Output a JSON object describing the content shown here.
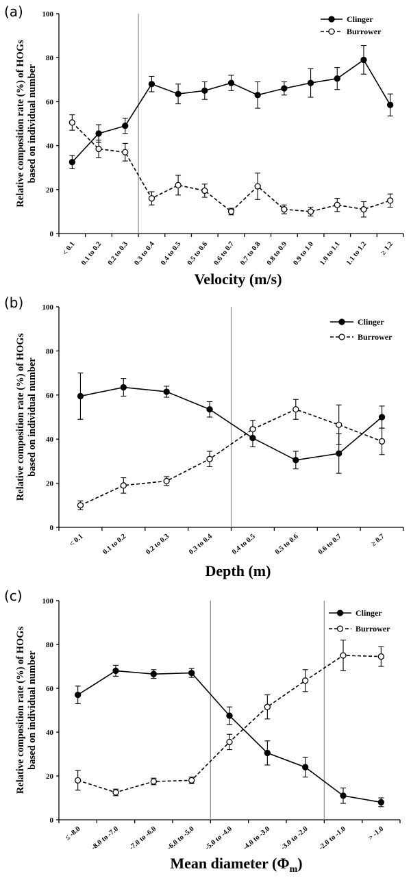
{
  "chart_data": [
    {
      "type": "line",
      "panel_label": "(a)",
      "title": "",
      "xlabel": "Velocity (m/s)",
      "ylabel": [
        "Relative composition rate (%) of HOGs",
        "based on individual number"
      ],
      "ylim": [
        0,
        100
      ],
      "yticks": [
        "0",
        "20",
        "40",
        "60",
        "80",
        "100"
      ],
      "categories": [
        "< 0.1",
        "0.1 to 0.2",
        "0.2 to 0.3",
        "0.3 to 0.4",
        "0.4 to 0.5",
        "0.5 to 0.6",
        "0.6 to 0.7",
        "0.7 to 0.8",
        "0.8 to 0.9",
        "0.9 to 1.0",
        "1.0 to 1.1",
        "1.1 to 1.2",
        "≥ 1.2"
      ],
      "dividers_after_index": [
        2
      ],
      "legend_position": "top-right",
      "grid": false,
      "series": [
        {
          "name": "Clinger",
          "style": "solid",
          "marker": "filled",
          "values": [
            32.5,
            45.5,
            49,
            68,
            63.5,
            65,
            68.5,
            63,
            66,
            68.5,
            70.5,
            79,
            58.5
          ],
          "errors": [
            3,
            4,
            3.5,
            3.5,
            4.5,
            4,
            3.5,
            6,
            3,
            6.5,
            5,
            6.5,
            5
          ]
        },
        {
          "name": "Burrower",
          "style": "dashed",
          "marker": "open",
          "values": [
            50.5,
            38.5,
            37,
            16,
            22,
            19.5,
            10,
            21.5,
            11,
            10,
            13,
            11,
            15
          ],
          "errors": [
            3.5,
            4,
            4,
            3,
            4.5,
            3,
            1.5,
            6,
            2,
            2,
            3,
            3.5,
            3
          ]
        }
      ]
    },
    {
      "type": "line",
      "panel_label": "(b)",
      "title": "",
      "xlabel": "Depth (m)",
      "ylabel": [
        "Relative composition rate (%) of HOGs",
        "based on individual number"
      ],
      "ylim": [
        0,
        100
      ],
      "yticks": [
        "0",
        "20",
        "40",
        "60",
        "80",
        "100"
      ],
      "categories": [
        "< 0.1",
        "0.1 to 0.2",
        "0.2 to 0.3",
        "0.3 to 0.4",
        "0.4 to 0.5",
        "0.5 to 0.6",
        "0.6 to 0.7",
        "≥ 0.7"
      ],
      "dividers_after_index": [
        3
      ],
      "legend_position": "top-right",
      "grid": false,
      "series": [
        {
          "name": "Clinger",
          "style": "solid",
          "marker": "filled",
          "values": [
            59.5,
            63.5,
            61.5,
            53.5,
            40.5,
            30.5,
            33.5,
            50
          ],
          "errors": [
            10.5,
            4,
            2.5,
            3.5,
            4,
            4,
            9,
            5
          ]
        },
        {
          "name": "Burrower",
          "style": "dashed",
          "marker": "open",
          "values": [
            10,
            19,
            21,
            31,
            44.5,
            53.5,
            46.5,
            39
          ],
          "errors": [
            2,
            3.5,
            2,
            3.5,
            4,
            4.5,
            9,
            6
          ]
        }
      ]
    },
    {
      "type": "line",
      "panel_label": "(c)",
      "title": "",
      "xlabel": "Mean diameter (Φ",
      "xlabel_sub": "m",
      "xlabel_end": ")",
      "ylabel": [
        "Relative composition rate (%) of HOGs",
        "based on individual number"
      ],
      "ylim": [
        0,
        100
      ],
      "yticks": [
        "0",
        "20",
        "40",
        "60",
        "80",
        "100"
      ],
      "categories": [
        "≤ -8.0",
        "-8.0 to -7.0",
        "-7.0 to -6.0",
        "-6.0 to -5.0",
        "-5.0 to -4.0",
        "-4.0 to -3.0",
        "-3.0 to -2.0",
        "-2.0 to -1.0",
        "> -1.0"
      ],
      "dividers_after_index": [
        3,
        6
      ],
      "legend_position": "top-right",
      "grid": false,
      "series": [
        {
          "name": "Clinger",
          "style": "solid",
          "marker": "filled",
          "values": [
            57,
            68,
            66.5,
            67,
            47.5,
            30.5,
            24,
            11,
            8
          ],
          "errors": [
            4,
            2.5,
            2,
            2,
            4,
            5.5,
            4.5,
            3.5,
            2
          ]
        },
        {
          "name": "Burrower",
          "style": "dashed",
          "marker": "open",
          "values": [
            18,
            12.5,
            17.5,
            18,
            35.5,
            51.5,
            63.5,
            75,
            74.5
          ],
          "errors": [
            4.5,
            1.5,
            1.5,
            1.5,
            3.5,
            5.5,
            5,
            7,
            4.5
          ]
        }
      ]
    }
  ]
}
